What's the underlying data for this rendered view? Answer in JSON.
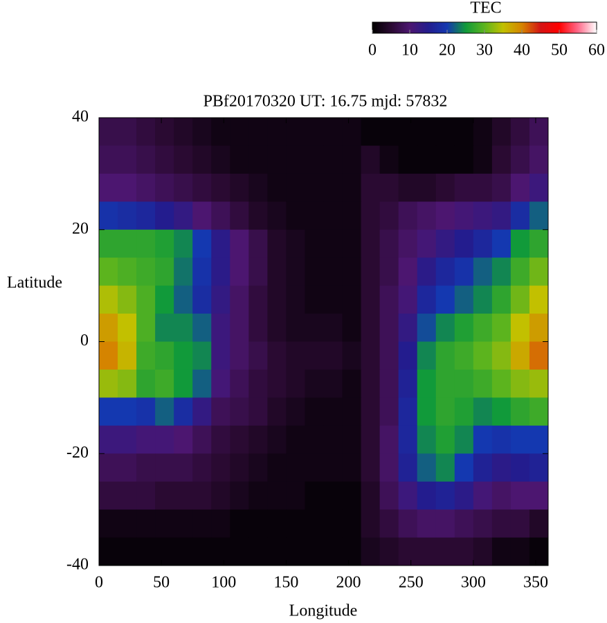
{
  "chart_data": {
    "type": "heatmap",
    "title": "PBf20170320  UT: 16.75  mjd: 57832",
    "x_label": "Longitude",
    "y_label": "Latitude",
    "colorbar_label": "TEC",
    "xlim": [
      0,
      360
    ],
    "ylim": [
      -40,
      40
    ],
    "xticks": [
      0,
      50,
      100,
      150,
      200,
      250,
      300,
      350
    ],
    "yticks": [
      -40,
      -20,
      0,
      20,
      40
    ],
    "cblim": [
      0,
      60
    ],
    "cbticks": [
      0,
      10,
      20,
      30,
      40,
      50,
      60
    ],
    "colormap": [
      [
        0,
        "#000000"
      ],
      [
        5,
        "#2a0a32"
      ],
      [
        10,
        "#4c1670"
      ],
      [
        15,
        "#231c8e"
      ],
      [
        20,
        "#1438b0"
      ],
      [
        25,
        "#119a3a"
      ],
      [
        30,
        "#5cb41e"
      ],
      [
        35,
        "#c2c000"
      ],
      [
        40,
        "#d58400"
      ],
      [
        45,
        "#d41414"
      ],
      [
        50,
        "#ff0000"
      ],
      [
        55,
        "#ff6a8a"
      ],
      [
        60,
        "#ffffff"
      ]
    ],
    "x": [
      0,
      15,
      30,
      45,
      60,
      75,
      90,
      105,
      120,
      135,
      150,
      165,
      180,
      195,
      210,
      225,
      240,
      255,
      270,
      285,
      300,
      315,
      330,
      345
    ],
    "y": [
      40,
      35,
      30,
      25,
      20,
      15,
      10,
      5,
      0,
      -5,
      -10,
      -15,
      -20,
      -25,
      -30,
      -35
    ],
    "z": [
      [
        7,
        7,
        6,
        5,
        4,
        3,
        2,
        2,
        2,
        2,
        2,
        2,
        2,
        2,
        1,
        1,
        1,
        1,
        1,
        1,
        2,
        4,
        6,
        8
      ],
      [
        8,
        8,
        7,
        6,
        5,
        4,
        3,
        2,
        2,
        2,
        2,
        2,
        2,
        2,
        4,
        2,
        1,
        1,
        1,
        1,
        2,
        5,
        7,
        9
      ],
      [
        10,
        10,
        9,
        8,
        7,
        6,
        5,
        4,
        3,
        2,
        2,
        2,
        2,
        2,
        5,
        5,
        4,
        4,
        5,
        6,
        6,
        7,
        10,
        12
      ],
      [
        19,
        18,
        17,
        15,
        13,
        10,
        8,
        6,
        4,
        3,
        2,
        2,
        2,
        2,
        5,
        6,
        8,
        9,
        10,
        11,
        12,
        13,
        18,
        22
      ],
      [
        27,
        27,
        27,
        26,
        24,
        20,
        14,
        10,
        7,
        4,
        3,
        2,
        2,
        2,
        5,
        7,
        9,
        11,
        13,
        15,
        17,
        20,
        25,
        27
      ],
      [
        30,
        29,
        28,
        27,
        23,
        19,
        14,
        10,
        7,
        4,
        3,
        2,
        2,
        2,
        5,
        7,
        10,
        14,
        17,
        19,
        22,
        24,
        28,
        31
      ],
      [
        34,
        32,
        29,
        25,
        22,
        18,
        13,
        9,
        6,
        4,
        3,
        2,
        2,
        2,
        5,
        8,
        11,
        17,
        20,
        22,
        24,
        27,
        31,
        35
      ],
      [
        38,
        35,
        29,
        24,
        24,
        22,
        12,
        9,
        6,
        4,
        3,
        3,
        3,
        2,
        5,
        8,
        13,
        21,
        24,
        26,
        28,
        30,
        35,
        38
      ],
      [
        40,
        36,
        28,
        27,
        25,
        24,
        12,
        9,
        7,
        5,
        4,
        4,
        4,
        3,
        5,
        8,
        15,
        24,
        27,
        28,
        30,
        32,
        37,
        41
      ],
      [
        33,
        32,
        27,
        28,
        25,
        22,
        11,
        8,
        6,
        5,
        4,
        3,
        3,
        2,
        5,
        8,
        16,
        25,
        27,
        27,
        28,
        30,
        32,
        33
      ],
      [
        20,
        20,
        19,
        22,
        18,
        13,
        8,
        7,
        6,
        4,
        3,
        2,
        2,
        2,
        5,
        8,
        17,
        25,
        27,
        26,
        24,
        25,
        27,
        28
      ],
      [
        12,
        12,
        11,
        11,
        10,
        8,
        6,
        5,
        4,
        3,
        2,
        2,
        2,
        2,
        5,
        9,
        17,
        24,
        26,
        24,
        20,
        19,
        20,
        20
      ],
      [
        8,
        8,
        7,
        7,
        7,
        6,
        5,
        4,
        3,
        2,
        2,
        2,
        2,
        2,
        5,
        9,
        16,
        22,
        24,
        20,
        16,
        14,
        15,
        16
      ],
      [
        6,
        6,
        6,
        5,
        5,
        5,
        4,
        3,
        2,
        2,
        2,
        1,
        1,
        1,
        4,
        8,
        12,
        15,
        16,
        14,
        11,
        9,
        10,
        10
      ],
      [
        2,
        2,
        2,
        2,
        2,
        2,
        2,
        1,
        1,
        1,
        1,
        1,
        1,
        1,
        4,
        6,
        8,
        9,
        9,
        8,
        7,
        6,
        6,
        4
      ],
      [
        1,
        1,
        1,
        1,
        1,
        1,
        1,
        1,
        1,
        1,
        1,
        1,
        1,
        1,
        3,
        4,
        5,
        5,
        5,
        5,
        4,
        2,
        2,
        1
      ]
    ]
  }
}
